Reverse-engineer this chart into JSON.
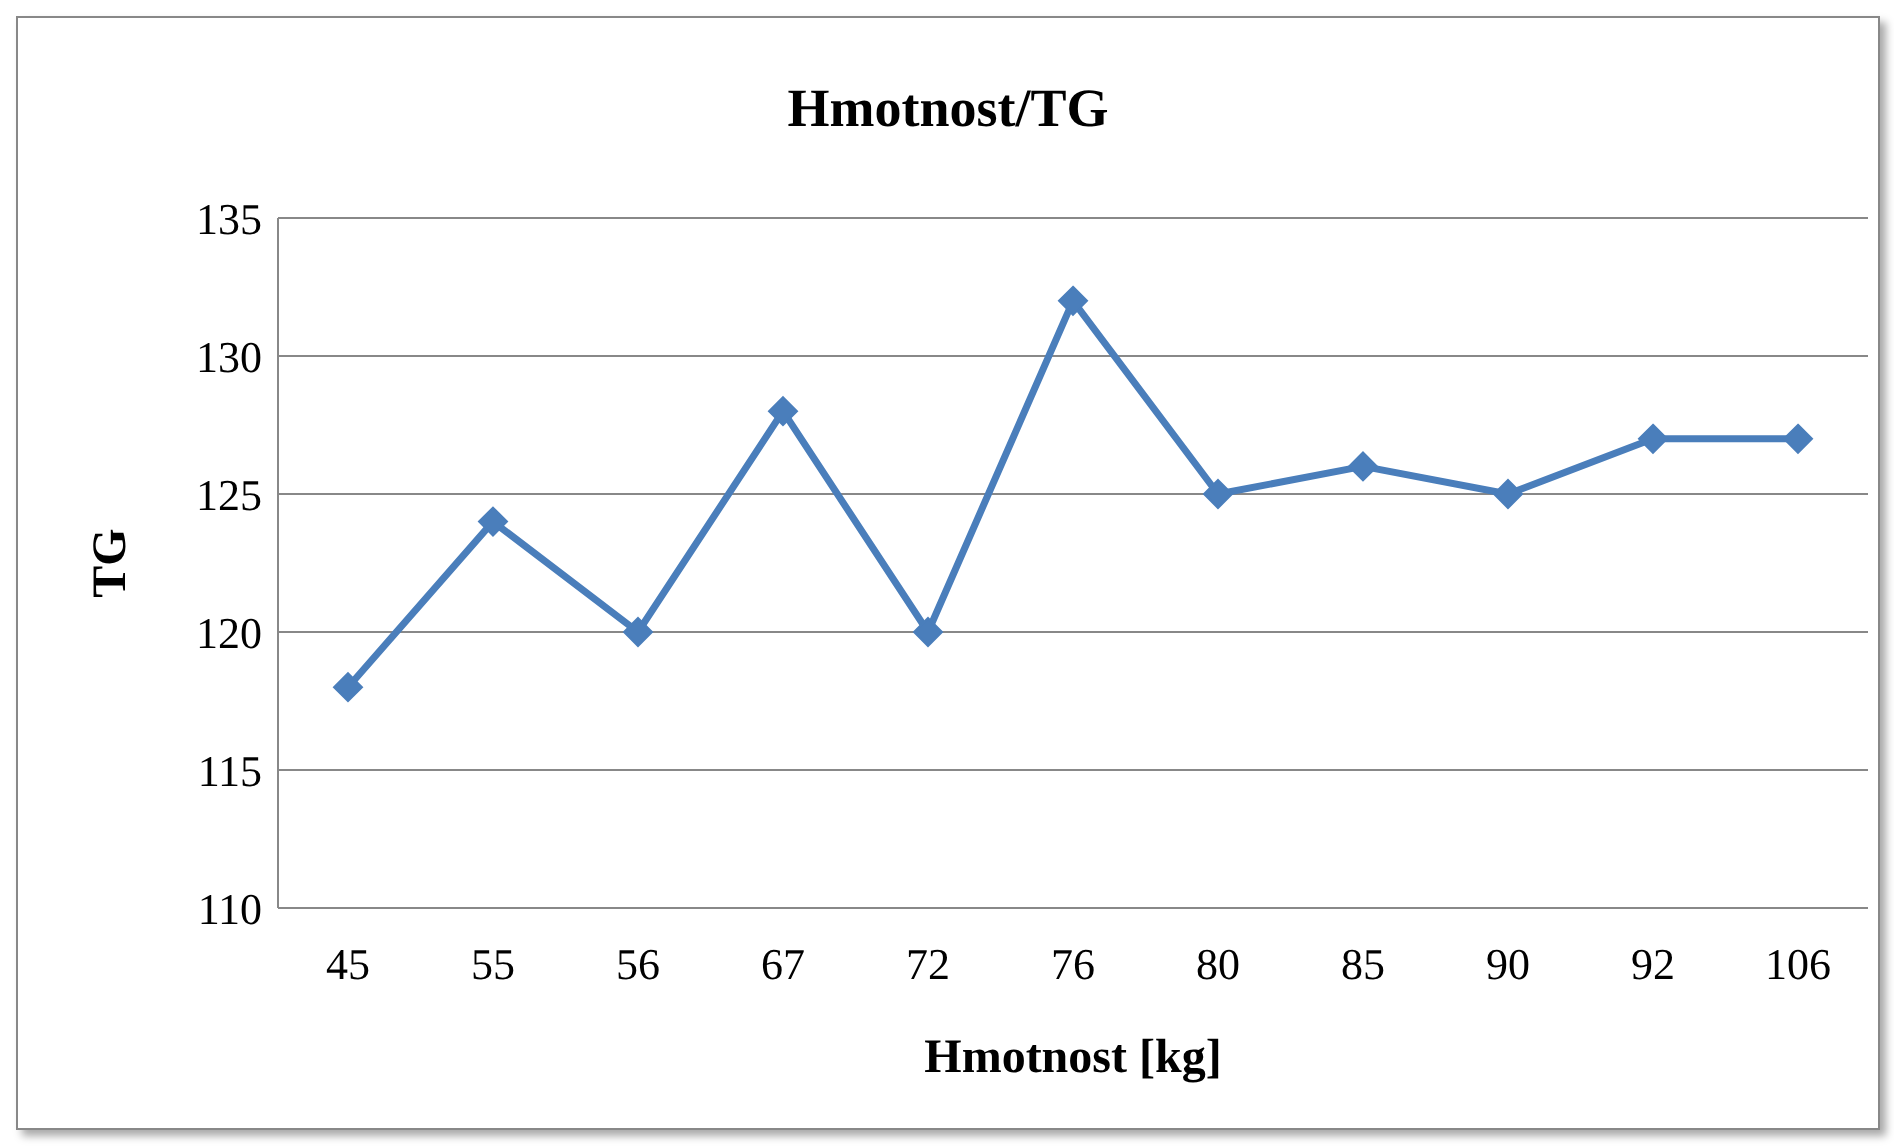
{
  "chart_data": {
    "type": "line",
    "title": "Hmotnost/TG",
    "xlabel": "Hmotnost [kg]",
    "ylabel": "TG",
    "categories": [
      "45",
      "55",
      "56",
      "67",
      "72",
      "76",
      "80",
      "85",
      "90",
      "92",
      "106"
    ],
    "series": [
      {
        "color": "#4a7ebb",
        "values": [
          118,
          124,
          120,
          128,
          120,
          132,
          125,
          126,
          125,
          127,
          127
        ]
      }
    ],
    "ylim": [
      110,
      135
    ],
    "yticks": [
      110,
      115,
      120,
      125,
      130,
      135
    ],
    "grid": "y",
    "marker": "diamond",
    "line_style": "solid"
  }
}
